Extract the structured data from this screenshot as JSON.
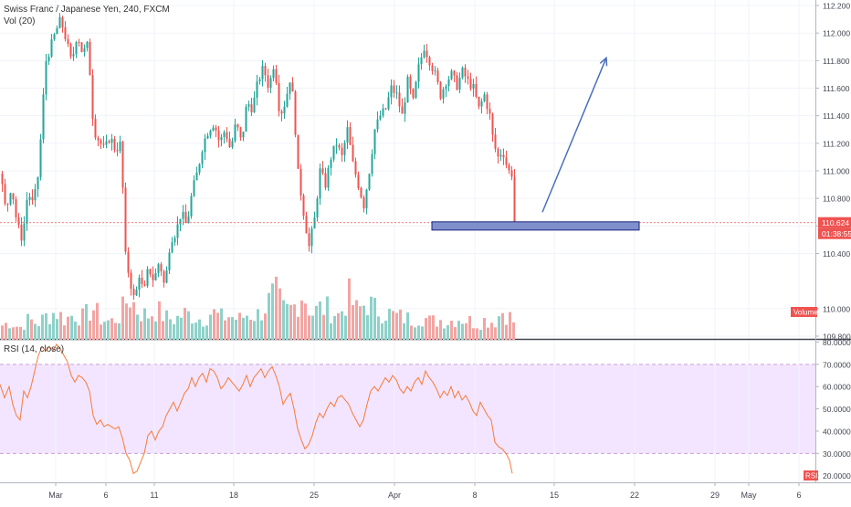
{
  "header": {
    "symbol_title": "Swiss Franc / Japanese Yen, 240, FXCM",
    "volume_study": "Vol (20)",
    "rsi_study": "RSI (14, close)"
  },
  "price_axis": {
    "ticks": [
      "112.200",
      "112.000",
      "111.800",
      "111.600",
      "111.400",
      "111.200",
      "111.000",
      "110.800",
      "110.600",
      "110.400",
      "110.000",
      "109.800"
    ],
    "current_price": "110.624",
    "countdown": "01:38:55",
    "volume_tag": "Volume"
  },
  "rsi_axis": {
    "ticks": [
      "80.0000",
      "70.0000",
      "60.0000",
      "50.0000",
      "40.0000",
      "30.0000",
      "20.0000"
    ],
    "tag": "RSI"
  },
  "time_axis": {
    "labels": [
      "Mar",
      "6",
      "11",
      "18",
      "25",
      "Apr",
      "8",
      "15",
      "22",
      "29",
      "May",
      "6"
    ]
  },
  "colors": {
    "up": "#26a69a",
    "down": "#ef5350",
    "vol_up": "#8fd1c9",
    "vol_down": "#f2a5a3",
    "rsi_line": "#f57c3a",
    "rsi_band": "#f3e5ff",
    "arrow": "#4a6fbd",
    "zone_fill": "#7f8fcc",
    "zone_stroke": "#1a237e",
    "price_tag": "#ef5350"
  },
  "chart_data": {
    "type": "candlestick",
    "price_range": [
      109.78,
      112.24
    ],
    "rsi_range": [
      17,
      81
    ],
    "rsi_overbought": 70,
    "rsi_oversold": 30,
    "last_price": 110.624,
    "demand_zone": {
      "from": 110.57,
      "to": 110.63
    },
    "projection_arrow": {
      "from": 110.7,
      "to": 111.82
    },
    "price_path": [
      [
        0,
        110.98
      ],
      [
        6,
        110.7
      ],
      [
        12,
        110.9
      ],
      [
        18,
        110.62
      ],
      [
        24,
        110.5
      ],
      [
        30,
        110.85
      ],
      [
        36,
        110.75
      ],
      [
        42,
        111.0
      ],
      [
        46,
        111.45
      ],
      [
        50,
        111.8
      ],
      [
        55,
        111.9
      ],
      [
        60,
        112.0
      ],
      [
        66,
        112.1
      ],
      [
        72,
        111.95
      ],
      [
        78,
        111.78
      ],
      [
        84,
        112.0
      ],
      [
        90,
        111.85
      ],
      [
        96,
        111.92
      ],
      [
        102,
        111.3
      ],
      [
        108,
        111.22
      ],
      [
        114,
        111.15
      ],
      [
        120,
        111.25
      ],
      [
        126,
        111.15
      ],
      [
        132,
        111.2
      ],
      [
        137,
        110.38
      ],
      [
        142,
        110.2
      ],
      [
        147,
        110.05
      ],
      [
        152,
        110.25
      ],
      [
        157,
        110.1
      ],
      [
        162,
        110.3
      ],
      [
        168,
        110.2
      ],
      [
        174,
        110.35
      ],
      [
        180,
        110.15
      ],
      [
        186,
        110.5
      ],
      [
        192,
        110.55
      ],
      [
        198,
        110.7
      ],
      [
        204,
        110.6
      ],
      [
        210,
        110.85
      ],
      [
        216,
        111.0
      ],
      [
        222,
        111.2
      ],
      [
        228,
        111.3
      ],
      [
        234,
        111.35
      ],
      [
        240,
        111.2
      ],
      [
        246,
        111.3
      ],
      [
        252,
        111.15
      ],
      [
        258,
        111.35
      ],
      [
        264,
        111.2
      ],
      [
        270,
        111.5
      ],
      [
        276,
        111.45
      ],
      [
        282,
        111.65
      ],
      [
        288,
        111.75
      ],
      [
        294,
        111.6
      ],
      [
        300,
        111.8
      ],
      [
        306,
        111.4
      ],
      [
        312,
        111.5
      ],
      [
        318,
        111.7
      ],
      [
        322,
        111.4
      ],
      [
        326,
        110.98
      ],
      [
        332,
        110.7
      ],
      [
        338,
        110.45
      ],
      [
        344,
        110.65
      ],
      [
        350,
        111.0
      ],
      [
        356,
        110.9
      ],
      [
        362,
        111.1
      ],
      [
        368,
        111.2
      ],
      [
        374,
        111.1
      ],
      [
        380,
        111.3
      ],
      [
        386,
        111.05
      ],
      [
        392,
        110.9
      ],
      [
        398,
        110.75
      ],
      [
        404,
        111.0
      ],
      [
        410,
        111.3
      ],
      [
        416,
        111.4
      ],
      [
        422,
        111.45
      ],
      [
        428,
        111.6
      ],
      [
        434,
        111.55
      ],
      [
        440,
        111.4
      ],
      [
        446,
        111.65
      ],
      [
        452,
        111.5
      ],
      [
        458,
        111.75
      ],
      [
        464,
        111.9
      ],
      [
        470,
        111.8
      ],
      [
        476,
        111.7
      ],
      [
        482,
        111.55
      ],
      [
        488,
        111.65
      ],
      [
        494,
        111.7
      ],
      [
        500,
        111.62
      ],
      [
        506,
        111.72
      ],
      [
        512,
        111.65
      ],
      [
        518,
        111.6
      ],
      [
        524,
        111.45
      ],
      [
        530,
        111.55
      ],
      [
        536,
        111.4
      ],
      [
        540,
        111.2
      ],
      [
        545,
        111.1
      ],
      [
        550,
        111.15
      ],
      [
        556,
        111.0
      ],
      [
        560,
        110.98
      ],
      [
        563,
        110.624
      ]
    ],
    "volume_path": [
      [
        0,
        0.7
      ],
      [
        10,
        0.9
      ],
      [
        20,
        0.6
      ],
      [
        30,
        1.0
      ],
      [
        40,
        0.8
      ],
      [
        50,
        1.2
      ],
      [
        60,
        1.4
      ],
      [
        70,
        1.0
      ],
      [
        80,
        1.3
      ],
      [
        90,
        1.1
      ],
      [
        100,
        1.6
      ],
      [
        110,
        1.0
      ],
      [
        120,
        0.9
      ],
      [
        130,
        1.2
      ],
      [
        140,
        2.2
      ],
      [
        150,
        1.4
      ],
      [
        160,
        1.2
      ],
      [
        170,
        1.5
      ],
      [
        180,
        1.1
      ],
      [
        190,
        1.0
      ],
      [
        200,
        1.3
      ],
      [
        210,
        1.2
      ],
      [
        220,
        1.0
      ],
      [
        230,
        1.4
      ],
      [
        240,
        1.1
      ],
      [
        250,
        1.2
      ],
      [
        260,
        1.0
      ],
      [
        270,
        1.3
      ],
      [
        280,
        1.2
      ],
      [
        290,
        1.7
      ],
      [
        300,
        2.3
      ],
      [
        310,
        1.4
      ],
      [
        320,
        1.6
      ],
      [
        330,
        2.4
      ],
      [
        340,
        1.3
      ],
      [
        350,
        1.6
      ],
      [
        360,
        1.5
      ],
      [
        370,
        1.2
      ],
      [
        380,
        2.2
      ],
      [
        390,
        1.4
      ],
      [
        400,
        1.9
      ],
      [
        410,
        1.5
      ],
      [
        420,
        1.4
      ],
      [
        430,
        1.2
      ],
      [
        440,
        1.1
      ],
      [
        450,
        1.0
      ],
      [
        460,
        1.2
      ],
      [
        470,
        0.9
      ],
      [
        480,
        1.0
      ],
      [
        490,
        0.9
      ],
      [
        500,
        1.1
      ],
      [
        510,
        1.0
      ],
      [
        520,
        0.8
      ],
      [
        530,
        1.0
      ],
      [
        540,
        0.9
      ],
      [
        550,
        1.5
      ],
      [
        563,
        0.8
      ]
    ],
    "rsi_path": [
      [
        0,
        61
      ],
      [
        5,
        55
      ],
      [
        10,
        60
      ],
      [
        14,
        52
      ],
      [
        18,
        47
      ],
      [
        22,
        45
      ],
      [
        26,
        58
      ],
      [
        30,
        55
      ],
      [
        34,
        60
      ],
      [
        38,
        67
      ],
      [
        42,
        74
      ],
      [
        46,
        78
      ],
      [
        50,
        76
      ],
      [
        54,
        78
      ],
      [
        58,
        76
      ],
      [
        62,
        79
      ],
      [
        66,
        77
      ],
      [
        70,
        74
      ],
      [
        74,
        71
      ],
      [
        78,
        65
      ],
      [
        82,
        62
      ],
      [
        86,
        65
      ],
      [
        90,
        64
      ],
      [
        94,
        62
      ],
      [
        98,
        58
      ],
      [
        102,
        47
      ],
      [
        106,
        43
      ],
      [
        110,
        45
      ],
      [
        114,
        42
      ],
      [
        118,
        43
      ],
      [
        122,
        42
      ],
      [
        126,
        41
      ],
      [
        130,
        42
      ],
      [
        134,
        37
      ],
      [
        138,
        30
      ],
      [
        142,
        27
      ],
      [
        146,
        21
      ],
      [
        150,
        22
      ],
      [
        154,
        26
      ],
      [
        158,
        30
      ],
      [
        162,
        38
      ],
      [
        166,
        40
      ],
      [
        170,
        36
      ],
      [
        174,
        40
      ],
      [
        178,
        42
      ],
      [
        182,
        47
      ],
      [
        186,
        50
      ],
      [
        190,
        53
      ],
      [
        194,
        49
      ],
      [
        198,
        53
      ],
      [
        202,
        57
      ],
      [
        206,
        59
      ],
      [
        210,
        64
      ],
      [
        214,
        60
      ],
      [
        218,
        64
      ],
      [
        222,
        66
      ],
      [
        226,
        62
      ],
      [
        230,
        68
      ],
      [
        234,
        67
      ],
      [
        238,
        64
      ],
      [
        242,
        59
      ],
      [
        246,
        61
      ],
      [
        250,
        64
      ],
      [
        254,
        62
      ],
      [
        258,
        60
      ],
      [
        262,
        58
      ],
      [
        266,
        61
      ],
      [
        270,
        65
      ],
      [
        274,
        60
      ],
      [
        278,
        64
      ],
      [
        282,
        66
      ],
      [
        286,
        68
      ],
      [
        290,
        64
      ],
      [
        294,
        67
      ],
      [
        298,
        69
      ],
      [
        302,
        65
      ],
      [
        306,
        60
      ],
      [
        310,
        52
      ],
      [
        314,
        55
      ],
      [
        318,
        57
      ],
      [
        322,
        50
      ],
      [
        326,
        41
      ],
      [
        330,
        36
      ],
      [
        334,
        32
      ],
      [
        338,
        34
      ],
      [
        342,
        38
      ],
      [
        346,
        44
      ],
      [
        350,
        48
      ],
      [
        354,
        46
      ],
      [
        358,
        50
      ],
      [
        362,
        53
      ],
      [
        366,
        51
      ],
      [
        370,
        55
      ],
      [
        374,
        56
      ],
      [
        378,
        54
      ],
      [
        382,
        52
      ],
      [
        386,
        48
      ],
      [
        390,
        45
      ],
      [
        394,
        42
      ],
      [
        398,
        45
      ],
      [
        402,
        52
      ],
      [
        406,
        58
      ],
      [
        410,
        60
      ],
      [
        414,
        58
      ],
      [
        418,
        61
      ],
      [
        422,
        64
      ],
      [
        426,
        62
      ],
      [
        430,
        65
      ],
      [
        434,
        63
      ],
      [
        438,
        59
      ],
      [
        442,
        57
      ],
      [
        446,
        60
      ],
      [
        450,
        58
      ],
      [
        454,
        62
      ],
      [
        458,
        64
      ],
      [
        462,
        61
      ],
      [
        466,
        67
      ],
      [
        470,
        64
      ],
      [
        474,
        62
      ],
      [
        478,
        59
      ],
      [
        482,
        55
      ],
      [
        486,
        58
      ],
      [
        490,
        56
      ],
      [
        494,
        60
      ],
      [
        498,
        55
      ],
      [
        502,
        58
      ],
      [
        506,
        54
      ],
      [
        510,
        56
      ],
      [
        514,
        53
      ],
      [
        518,
        49
      ],
      [
        522,
        47
      ],
      [
        526,
        53
      ],
      [
        530,
        50
      ],
      [
        534,
        47
      ],
      [
        538,
        45
      ],
      [
        542,
        35
      ],
      [
        546,
        33
      ],
      [
        550,
        32
      ],
      [
        554,
        30
      ],
      [
        558,
        27
      ],
      [
        561,
        21
      ]
    ]
  }
}
